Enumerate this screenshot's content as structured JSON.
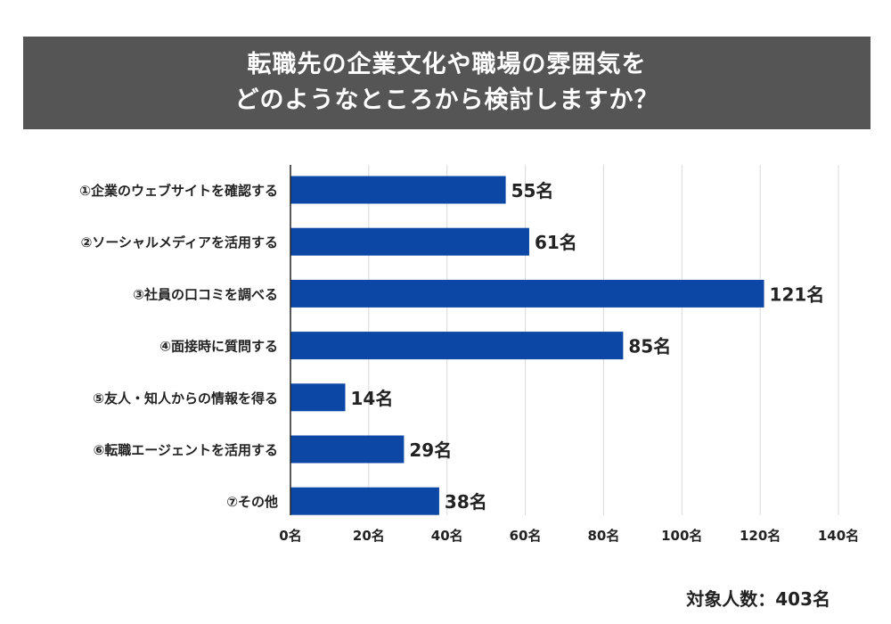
{
  "chart_data": {
    "type": "bar",
    "orientation": "horizontal",
    "title_lines": [
      "転職先の企業文化や職場の雰囲気を",
      "どのようなところから検討しますか？"
    ],
    "categories": [
      "①企業のウェブサイトを確認する",
      "②ソーシャルメディアを活用する",
      "③社員の口コミを調べる",
      "④面接時に質問する",
      "⑤友人・知人からの情報を得る",
      "⑥転職エージェントを活用する",
      "⑦その他"
    ],
    "values": [
      55,
      61,
      121,
      85,
      14,
      29,
      38
    ],
    "data_labels": [
      "55名",
      "61名",
      "121名",
      "85名",
      "14名",
      "29名",
      "38名"
    ],
    "xlim": [
      0,
      140
    ],
    "xticks": [
      0,
      20,
      40,
      60,
      80,
      100,
      120,
      140
    ],
    "xtick_labels": [
      "0名",
      "20名",
      "40名",
      "60名",
      "80名",
      "100名",
      "120名",
      "140名"
    ],
    "grid": "vertical",
    "bar_color": "#0C47A6",
    "xlabel": "",
    "ylabel": ""
  },
  "footer": {
    "respondents": "対象人数：403名"
  }
}
